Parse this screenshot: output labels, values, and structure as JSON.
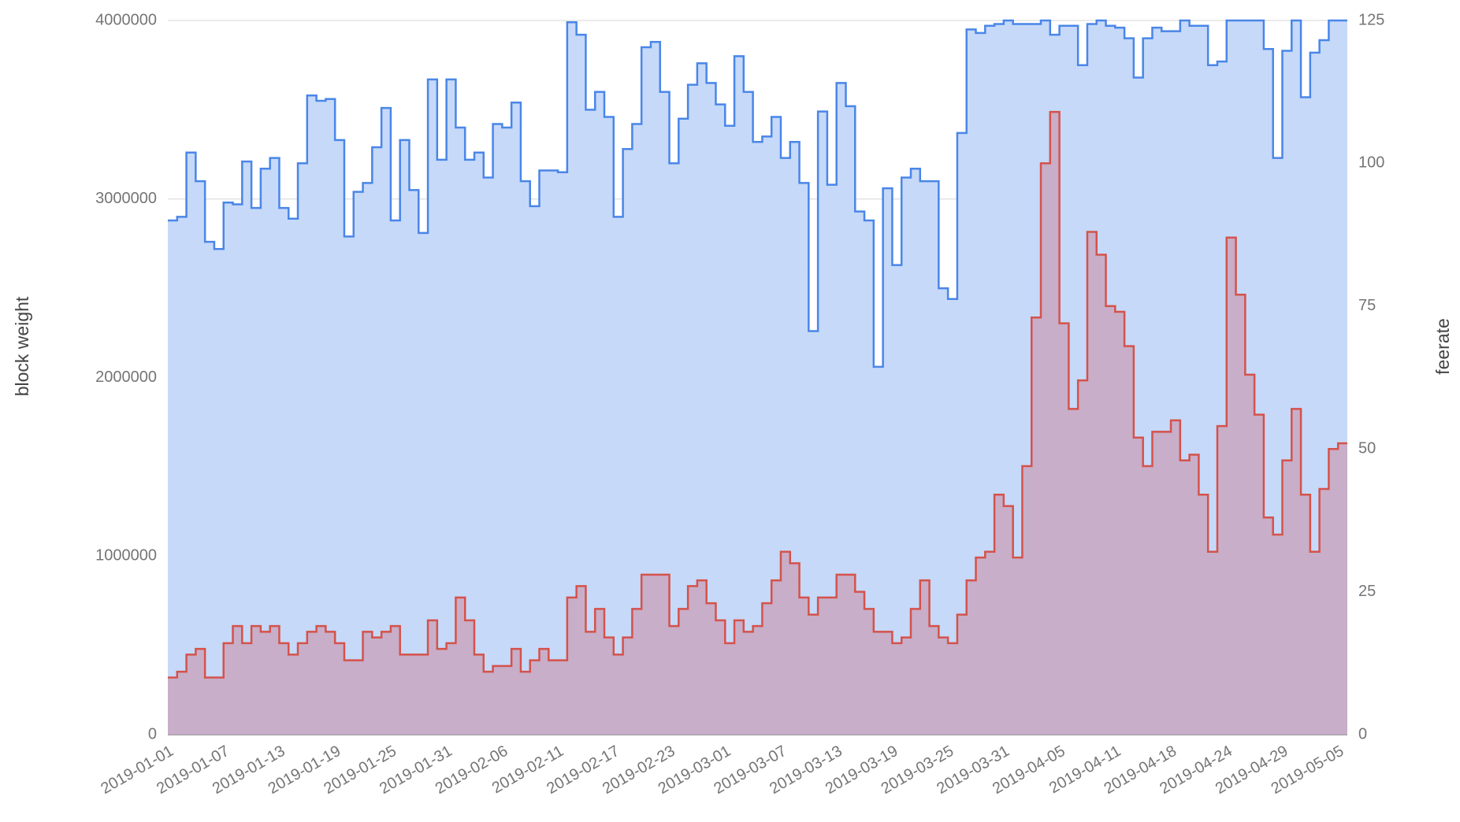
{
  "chart_data": {
    "type": "steppedArea",
    "ylabel": "block weight",
    "y2label": "feerate",
    "ylim": [
      0,
      4000000
    ],
    "yticks": [
      0,
      1000000,
      2000000,
      3000000,
      4000000
    ],
    "y2lim": [
      0,
      125
    ],
    "y2ticks": [
      0,
      25,
      50,
      75,
      100,
      125
    ],
    "grid": true,
    "categories": [
      "2019-01-01",
      null,
      null,
      null,
      null,
      null,
      "2019-01-07",
      null,
      null,
      null,
      null,
      null,
      "2019-01-13",
      null,
      null,
      null,
      null,
      null,
      "2019-01-19",
      null,
      null,
      null,
      null,
      null,
      "2019-01-25",
      null,
      null,
      null,
      null,
      null,
      "2019-01-31",
      null,
      null,
      null,
      null,
      null,
      "2019-02-06",
      null,
      null,
      null,
      null,
      null,
      "2019-02-11",
      null,
      null,
      null,
      null,
      null,
      "2019-02-17",
      null,
      null,
      null,
      null,
      null,
      "2019-02-23",
      null,
      null,
      null,
      null,
      null,
      "2019-03-01",
      null,
      null,
      null,
      null,
      null,
      "2019-03-07",
      null,
      null,
      null,
      null,
      null,
      "2019-03-13",
      null,
      null,
      null,
      null,
      null,
      "2019-03-19",
      null,
      null,
      null,
      null,
      null,
      "2019-03-25",
      null,
      null,
      null,
      null,
      null,
      "2019-03-31",
      null,
      null,
      null,
      null,
      null,
      "2019-04-05",
      null,
      null,
      null,
      null,
      null,
      "2019-04-11",
      null,
      null,
      null,
      null,
      null,
      "2019-04-18",
      null,
      null,
      null,
      null,
      null,
      "2019-04-24",
      null,
      null,
      null,
      null,
      null,
      "2019-04-29",
      null,
      null,
      null,
      null,
      null,
      "2019-05-05"
    ],
    "series": [
      {
        "color": "#4a86e8",
        "fill": "#c6d9f9",
        "values": [
          2880000,
          2900000,
          3260000,
          3100000,
          2760000,
          2720000,
          2980000,
          2970000,
          3210000,
          2950000,
          3170000,
          3230000,
          2950000,
          2890000,
          3200000,
          3580000,
          3550000,
          3560000,
          3330000,
          2790000,
          3040000,
          3090000,
          3290000,
          3510000,
          2880000,
          3330000,
          3050000,
          2810000,
          3670000,
          3220000,
          3670000,
          3400000,
          3220000,
          3260000,
          3120000,
          3420000,
          3400000,
          3540000,
          3100000,
          2960000,
          3160000,
          3160000,
          3150000,
          3990000,
          3920000,
          3500000,
          3600000,
          3460000,
          2900000,
          3280000,
          3420000,
          3850000,
          3880000,
          3600000,
          3200000,
          3450000,
          3640000,
          3760000,
          3650000,
          3530000,
          3410000,
          3800000,
          3600000,
          3320000,
          3350000,
          3460000,
          3230000,
          3320000,
          3090000,
          2260000,
          3490000,
          3080000,
          3650000,
          3520000,
          2930000,
          2880000,
          2060000,
          3060000,
          2630000,
          3120000,
          3170000,
          3100000,
          3100000,
          2500000,
          2440000,
          3370000,
          3950000,
          3930000,
          3970000,
          3980000,
          4000000,
          3980000,
          3980000,
          3980000,
          4000000,
          3920000,
          3970000,
          3970000,
          3750000,
          3980000,
          4000000,
          3970000,
          3960000,
          3900000,
          3680000,
          3900000,
          3960000,
          3940000,
          3940000,
          4000000,
          3970000,
          3970000,
          3750000,
          3770000,
          4000000,
          4000000,
          4000000,
          4000000,
          3840000,
          3230000,
          3830000,
          4000000,
          3570000,
          3820000,
          3890000,
          4000000,
          4000000
        ]
      },
      {
        "color": "#d5524a",
        "fill": "#c8a6bf",
        "axis": "y2",
        "values": [
          10,
          11,
          14,
          15,
          10,
          10,
          16,
          19,
          16,
          19,
          18,
          19,
          16,
          14,
          16,
          18,
          19,
          18,
          16,
          13,
          13,
          18,
          17,
          18,
          19,
          14,
          14,
          14,
          20,
          15,
          16,
          24,
          20,
          14,
          11,
          12,
          12,
          15,
          11,
          13,
          15,
          13,
          13,
          24,
          26,
          18,
          22,
          17,
          14,
          17,
          22,
          28,
          28,
          28,
          19,
          22,
          26,
          27,
          23,
          20,
          16,
          20,
          18,
          19,
          23,
          27,
          32,
          30,
          24,
          21,
          24,
          24,
          28,
          28,
          25,
          22,
          18,
          18,
          16,
          17,
          22,
          27,
          19,
          17,
          16,
          21,
          27,
          31,
          32,
          42,
          40,
          31,
          47,
          73,
          100,
          109,
          72,
          57,
          62,
          88,
          84,
          75,
          74,
          68,
          52,
          47,
          53,
          53,
          55,
          48,
          49,
          42,
          32,
          54,
          87,
          77,
          63,
          56,
          38,
          35,
          48,
          57,
          42,
          32,
          43,
          50,
          51
        ]
      }
    ]
  }
}
